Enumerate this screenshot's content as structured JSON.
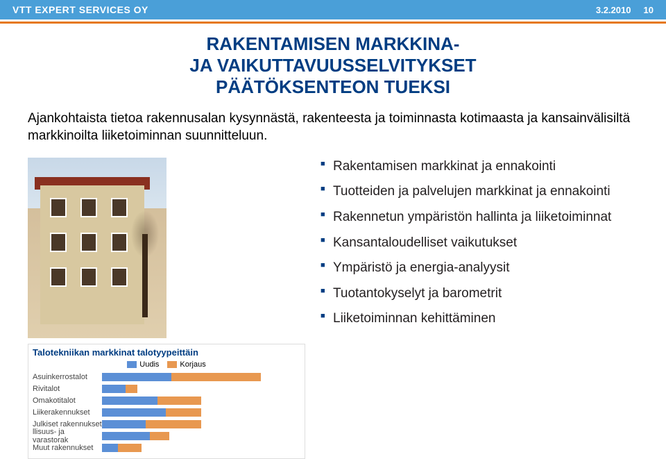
{
  "header": {
    "company": "VTT EXPERT SERVICES OY",
    "date": "3.2.2010",
    "page": "10"
  },
  "title_line1": "RAKENTAMISEN MARKKINA-",
  "title_line2": "JA VAIKUTTAVUUSSELVITYKSET",
  "title_line3": "PÄÄTÖKSENTEON TUEKSI",
  "intro": "Ajankohtaista tietoa rakennusalan kysynnästä, rakenteesta ja toiminnasta kotimaasta ja kansainvälisiltä markkinoilta liiketoiminnan suunnitteluun.",
  "bullets": [
    "Rakentamisen markkinat ja ennakointi",
    "Tuotteiden ja palvelujen markkinat ja ennakointi",
    "Rakennetun ympäristön hallinta ja liiketoiminnat",
    "Kansantaloudelliset vaikutukset",
    "Ympäristö ja energia-analyysit",
    "Tuotantokyselyt ja barometrit",
    "Liiketoiminnan kehittäminen"
  ],
  "chart": {
    "type": "bar",
    "title": "Talotekniikan markkinat talotyypeittäin",
    "legend": [
      {
        "label": "Uudis",
        "color": "#5b8fd6"
      },
      {
        "label": "Korjaus",
        "color": "#e89850"
      }
    ],
    "max": 100,
    "rows": [
      {
        "label": "Asuinkerrostalot",
        "v1": 35,
        "v2": 45
      },
      {
        "label": "Rivitalot",
        "v1": 12,
        "v2": 6
      },
      {
        "label": "Omakotitalot",
        "v1": 28,
        "v2": 22
      },
      {
        "label": "Liikerakennukset",
        "v1": 32,
        "v2": 18
      },
      {
        "label": "Julkiset rakennukset",
        "v1": 22,
        "v2": 28
      },
      {
        "label": "llisuus- ja varastorak",
        "v1": 24,
        "v2": 10
      },
      {
        "label": "Muut rakennukset",
        "v1": 8,
        "v2": 12
      }
    ],
    "colors": {
      "bar1": "#5b8fd6",
      "bar2": "#e89850"
    }
  },
  "photo": {
    "sky": "#c8d8e8",
    "wall": "#d8c8a0",
    "roof": "#8a3020",
    "window": "#4a3828"
  }
}
